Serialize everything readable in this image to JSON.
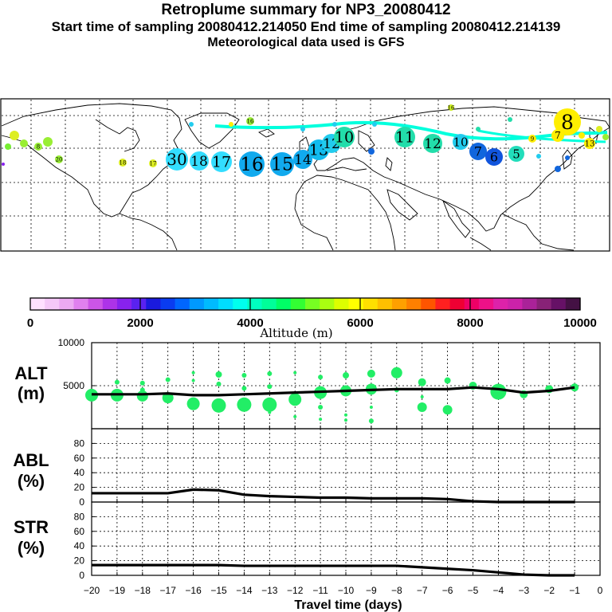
{
  "header": {
    "title": "Retroplume summary for NP3_20080412",
    "subtitle": "Start time of sampling 20080412.214050     End time of sampling 20080412.214139",
    "met_line": "Meteorological data used is GFS"
  },
  "colorbar": {
    "title": "Altitude (m)",
    "tick_labels": [
      "0",
      "2000",
      "4000",
      "6000",
      "8000",
      "10000"
    ],
    "colors": [
      "#ffe0ff",
      "#f5c8f8",
      "#ecaaf2",
      "#e080ee",
      "#cc55e6",
      "#ad33e8",
      "#8822ee",
      "#5a22f0",
      "#1a1add",
      "#0a3cf0",
      "#0066ff",
      "#0099ff",
      "#00bbff",
      "#00ddff",
      "#00ffee",
      "#00ffc0",
      "#00ff99",
      "#00ff66",
      "#33ff33",
      "#77ff22",
      "#aaff11",
      "#ddff00",
      "#ffff00",
      "#ffe000",
      "#ffc000",
      "#ffa000",
      "#ff8000",
      "#ff5500",
      "#ff2020",
      "#ee0033",
      "#ee0066",
      "#ee1188",
      "#dd22aa",
      "#cc22aa",
      "#aa2299",
      "#882277",
      "#661166",
      "#441144"
    ]
  },
  "map": {
    "markers": [
      {
        "label": "30",
        "color": "#33ddff"
      },
      {
        "label": "18",
        "color": "#33ddff"
      },
      {
        "label": "17",
        "color": "#33ddff"
      },
      {
        "label": "16",
        "color": "#11aaee"
      },
      {
        "label": "15",
        "color": "#11aaee"
      },
      {
        "label": "14",
        "color": "#11aaee"
      },
      {
        "label": "13",
        "color": "#11bbee"
      },
      {
        "label": "12",
        "color": "#22ccee"
      },
      {
        "label": "10",
        "color": "#22ddaa"
      },
      {
        "label": "11",
        "color": "#22ddaa"
      },
      {
        "label": "12",
        "color": "#22ddaa"
      },
      {
        "label": "10",
        "color": "#22ccee"
      },
      {
        "label": "7",
        "color": "#1166dd"
      },
      {
        "label": "6",
        "color": "#1155dd"
      },
      {
        "label": "5",
        "color": "#22ddbb"
      },
      {
        "label": "8",
        "color": "#ffee00"
      },
      {
        "label": "9",
        "color": "#ffee00"
      },
      {
        "label": "7",
        "color": "#ffee00"
      },
      {
        "label": "13",
        "color": "#ffee00"
      },
      {
        "label": "16",
        "color": "#99ee33"
      },
      {
        "label": "20",
        "color": "#99ee33"
      },
      {
        "label": "18",
        "color": "#ddee22"
      },
      {
        "label": "17",
        "color": "#ddee22"
      },
      {
        "label": "16",
        "color": "#ccee22"
      },
      {
        "label": "8",
        "color": "#99ee33"
      }
    ]
  },
  "panels": {
    "alt": {
      "label_line1": "ALT",
      "label_line2": "(m)",
      "ticks": [
        "10000",
        "5000"
      ]
    },
    "abl": {
      "label_line1": "ABL",
      "label_line2": "(%)",
      "ticks": [
        "80",
        "60",
        "40",
        "20",
        "0"
      ]
    },
    "str": {
      "label_line1": "STR",
      "label_line2": "(%)",
      "ticks": [
        "80",
        "60",
        "40",
        "20",
        "0"
      ]
    }
  },
  "chart_data": [
    {
      "type": "line",
      "title": "ALT (m)",
      "xlabel": "Travel time (days)",
      "ylabel": "ALT (m)",
      "xlim": [
        -20,
        0
      ],
      "ylim": [
        0,
        10000
      ],
      "x_tick_labels": [
        "−20",
        "−19",
        "−18",
        "−17",
        "−16",
        "−15",
        "−14",
        "−13",
        "−12",
        "−11",
        "−10",
        "−9",
        "−8",
        "−7",
        "−6",
        "−5",
        "−4",
        "−3",
        "−2",
        "−1",
        "0"
      ],
      "series": [
        {
          "name": "mean altitude",
          "x": [
            -20,
            -19,
            -18,
            -17,
            -16,
            -15,
            -14,
            -13,
            -12,
            -11,
            -10,
            -9,
            -8,
            -7,
            -6,
            -5,
            -4,
            -3,
            -2,
            -1
          ],
          "values": [
            4000,
            4000,
            4000,
            4100,
            3900,
            3900,
            4000,
            4100,
            4200,
            4300,
            4400,
            4500,
            4600,
            4600,
            4600,
            4800,
            4600,
            4200,
            4400,
            4800
          ]
        }
      ],
      "scatter_points": [
        {
          "x": -20,
          "y": 3900,
          "s": 8
        },
        {
          "x": -19,
          "y": 3900,
          "s": 8
        },
        {
          "x": -19,
          "y": 5400,
          "s": 3
        },
        {
          "x": -18,
          "y": 3800,
          "s": 7
        },
        {
          "x": -18,
          "y": 5300,
          "s": 3
        },
        {
          "x": -18,
          "y": 4500,
          "s": 3
        },
        {
          "x": -17,
          "y": 3600,
          "s": 7
        },
        {
          "x": -17,
          "y": 5700,
          "s": 3
        },
        {
          "x": -16,
          "y": 2900,
          "s": 8
        },
        {
          "x": -16,
          "y": 6500,
          "s": 2
        },
        {
          "x": -16,
          "y": 5600,
          "s": 2
        },
        {
          "x": -15,
          "y": 2700,
          "s": 9
        },
        {
          "x": -15,
          "y": 6300,
          "s": 4
        },
        {
          "x": -15,
          "y": 5200,
          "s": 3
        },
        {
          "x": -14,
          "y": 2800,
          "s": 9
        },
        {
          "x": -14,
          "y": 6200,
          "s": 3
        },
        {
          "x": -14,
          "y": 4700,
          "s": 3
        },
        {
          "x": -13,
          "y": 2800,
          "s": 9
        },
        {
          "x": -13,
          "y": 6400,
          "s": 3
        },
        {
          "x": -13,
          "y": 4900,
          "s": 3
        },
        {
          "x": -13,
          "y": 1900,
          "s": 2
        },
        {
          "x": -12,
          "y": 3400,
          "s": 8
        },
        {
          "x": -12,
          "y": 6500,
          "s": 2
        },
        {
          "x": -12,
          "y": 1400,
          "s": 2
        },
        {
          "x": -11,
          "y": 4200,
          "s": 8
        },
        {
          "x": -11,
          "y": 6000,
          "s": 3
        },
        {
          "x": -11,
          "y": 2500,
          "s": 3
        },
        {
          "x": -11,
          "y": 1100,
          "s": 2
        },
        {
          "x": -10,
          "y": 4400,
          "s": 7
        },
        {
          "x": -10,
          "y": 6200,
          "s": 4
        },
        {
          "x": -10,
          "y": 1600,
          "s": 2
        },
        {
          "x": -10,
          "y": 1000,
          "s": 2
        },
        {
          "x": -9,
          "y": 4600,
          "s": 7
        },
        {
          "x": -9,
          "y": 6400,
          "s": 5
        },
        {
          "x": -9,
          "y": 2500,
          "s": 2
        },
        {
          "x": -9,
          "y": 900,
          "s": 3
        },
        {
          "x": -8,
          "y": 6500,
          "s": 7
        },
        {
          "x": -8,
          "y": 4500,
          "s": 3
        },
        {
          "x": -7,
          "y": 5400,
          "s": 5
        },
        {
          "x": -7,
          "y": 2500,
          "s": 6
        },
        {
          "x": -7,
          "y": 3700,
          "s": 2
        },
        {
          "x": -6,
          "y": 5600,
          "s": 4
        },
        {
          "x": -6,
          "y": 2200,
          "s": 6
        },
        {
          "x": -5,
          "y": 5000,
          "s": 5
        },
        {
          "x": -4,
          "y": 4300,
          "s": 10
        },
        {
          "x": -3,
          "y": 4000,
          "s": 5
        },
        {
          "x": -2,
          "y": 4600,
          "s": 5
        },
        {
          "x": -1,
          "y": 4800,
          "s": 5
        }
      ]
    },
    {
      "type": "line",
      "title": "ABL (%)",
      "xlabel": "Travel time (days)",
      "ylabel": "ABL (%)",
      "xlim": [
        -20,
        0
      ],
      "ylim": [
        0,
        100
      ],
      "series": [
        {
          "name": "ABL fraction",
          "x": [
            -20,
            -19,
            -18,
            -17,
            -16,
            -15,
            -14,
            -13,
            -12,
            -11,
            -10,
            -9,
            -8,
            -7,
            -6,
            -5,
            -4,
            -3,
            -2,
            -1
          ],
          "values": [
            12,
            12,
            12,
            12,
            17,
            16,
            10,
            8,
            7,
            6,
            6,
            5,
            5,
            5,
            4,
            1,
            0,
            0,
            0,
            0
          ]
        }
      ]
    },
    {
      "type": "line",
      "title": "STR (%)",
      "xlabel": "Travel time (days)",
      "ylabel": "STR (%)",
      "xlim": [
        -20,
        0
      ],
      "ylim": [
        0,
        100
      ],
      "series": [
        {
          "name": "stratospheric fraction",
          "x": [
            -20,
            -19,
            -18,
            -17,
            -16,
            -15,
            -14,
            -13,
            -12,
            -11,
            -10,
            -9,
            -8,
            -7,
            -6,
            -5,
            -4,
            -3,
            -2,
            -1
          ],
          "values": [
            14,
            14,
            14,
            14,
            14,
            14,
            13,
            13,
            13,
            13,
            13,
            13,
            13,
            11,
            9,
            7,
            4,
            1,
            0,
            0
          ]
        }
      ]
    }
  ]
}
